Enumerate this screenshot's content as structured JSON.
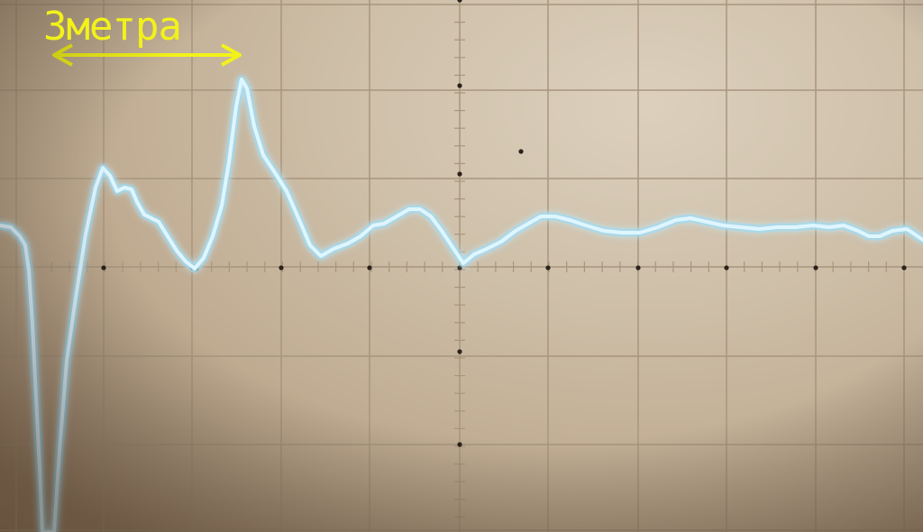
{
  "annotation": {
    "label": "3метра",
    "color": "#f2f21a"
  },
  "screen": {
    "background_color": "#c8b8a0",
    "grid_color": "#a8957e",
    "trace_color": "#dff6ff",
    "trace_glow_color": "#8fd8f5"
  }
}
